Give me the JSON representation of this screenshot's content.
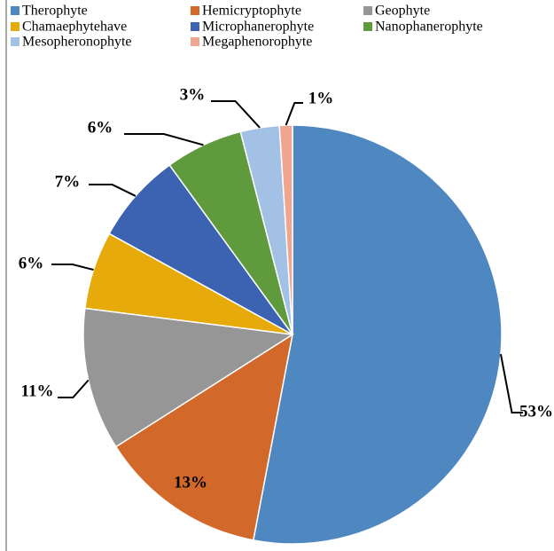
{
  "chart_data": {
    "type": "pie",
    "categories": [
      "Therophyte",
      "Hemicryptophyte",
      "Geophyte",
      "Chamaephytehave",
      "Microphanerophyte",
      "Nanophanerophyte",
      "Mesopheronophyte",
      "Megaphenorophyte"
    ],
    "values": [
      53,
      13,
      11,
      6,
      7,
      6,
      3,
      1
    ],
    "value_labels": [
      "53%",
      "13%",
      "11%",
      "6%",
      "7%",
      "6%",
      "3%",
      "1%"
    ],
    "colors": [
      "#4f88c0",
      "#d2692b",
      "#969696",
      "#e6aa0a",
      "#3c63b1",
      "#5f9a3d",
      "#a3c1e5",
      "#f0a58e"
    ],
    "legend": "top"
  }
}
